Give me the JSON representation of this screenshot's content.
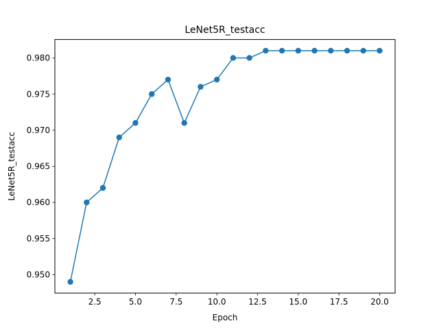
{
  "chart_data": {
    "type": "line",
    "title": "LeNet5R_testacc",
    "xlabel": "Epoch",
    "ylabel": "LeNet5R_testacc",
    "xlim": [
      0.05,
      20.95
    ],
    "ylim": [
      0.94745,
      0.98255
    ],
    "xticks": [
      2.5,
      5.0,
      7.5,
      10.0,
      12.5,
      15.0,
      17.5,
      20.0
    ],
    "xtick_labels": [
      "2.5",
      "5.0",
      "7.5",
      "10.0",
      "12.5",
      "15.0",
      "17.5",
      "20.0"
    ],
    "yticks": [
      0.95,
      0.955,
      0.96,
      0.965,
      0.97,
      0.975,
      0.98
    ],
    "ytick_labels": [
      "0.950",
      "0.955",
      "0.960",
      "0.965",
      "0.970",
      "0.975",
      "0.980"
    ],
    "grid": false,
    "markers": true,
    "series": [
      {
        "color": "#1f77b4",
        "x": [
          1,
          2,
          3,
          4,
          5,
          6,
          7,
          8,
          9,
          10,
          11,
          12,
          13,
          14,
          15,
          16,
          17,
          18,
          19,
          20
        ],
        "y": [
          0.949,
          0.96,
          0.962,
          0.969,
          0.971,
          0.975,
          0.977,
          0.971,
          0.976,
          0.977,
          0.98,
          0.98,
          0.981,
          0.981,
          0.981,
          0.981,
          0.981,
          0.981,
          0.981,
          0.981
        ]
      }
    ]
  }
}
